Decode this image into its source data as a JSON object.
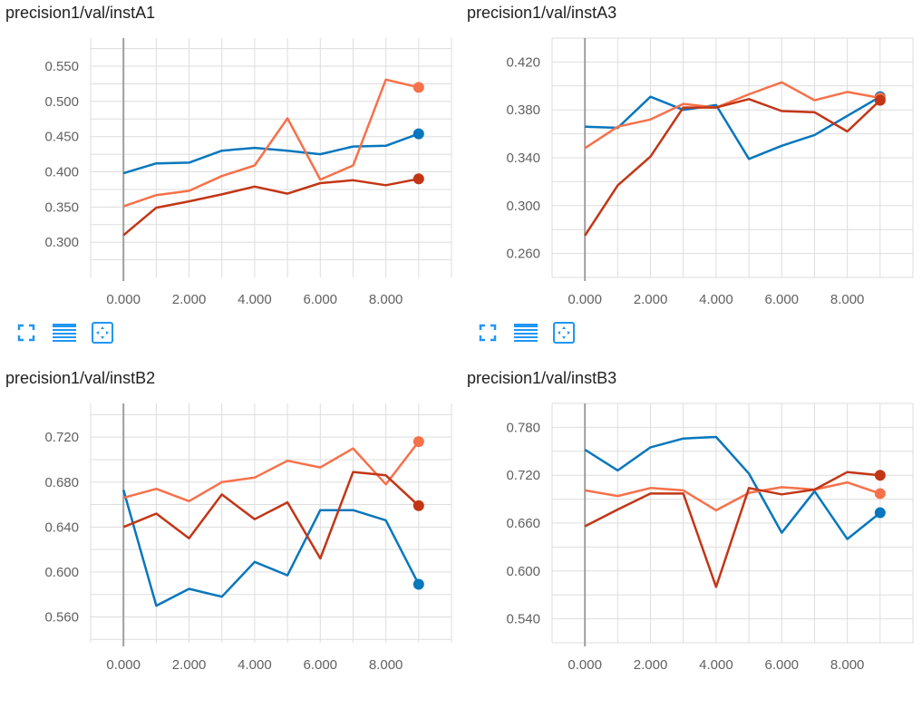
{
  "colors": {
    "blue": "#0877bd",
    "orange": "#f7714a",
    "red": "#c23616",
    "grid": "#dddddd",
    "axis": "#9e9e9e",
    "icon": "#2196f3"
  },
  "toolbar": {
    "icons": [
      "fullscreen-icon",
      "data-table-icon",
      "fit-domain-icon"
    ]
  },
  "chart_data": [
    {
      "type": "line",
      "title": "precision1/val/instA1",
      "x_ticks": [
        "0.000",
        "2.000",
        "4.000",
        "6.000",
        "8.000"
      ],
      "y_ticks": [
        "0.300",
        "0.350",
        "0.400",
        "0.450",
        "0.500",
        "0.550"
      ],
      "xlim": [
        -1,
        10
      ],
      "ylim": [
        0.25,
        0.59
      ],
      "series": [
        {
          "color": "blue",
          "x": [
            0,
            1,
            2,
            3,
            4,
            5,
            6,
            7,
            8,
            9
          ],
          "values": [
            0.398,
            0.412,
            0.413,
            0.43,
            0.434,
            0.43,
            0.425,
            0.436,
            0.437,
            0.454
          ]
        },
        {
          "color": "orange",
          "x": [
            0,
            1,
            2,
            3,
            4,
            5,
            6,
            7,
            8,
            9
          ],
          "values": [
            0.351,
            0.367,
            0.373,
            0.394,
            0.409,
            0.476,
            0.389,
            0.409,
            0.531,
            0.52
          ]
        },
        {
          "color": "red",
          "x": [
            0,
            1,
            2,
            3,
            4,
            5,
            6,
            7,
            8,
            9
          ],
          "values": [
            0.31,
            0.349,
            0.358,
            0.368,
            0.379,
            0.369,
            0.384,
            0.388,
            0.381,
            0.39
          ]
        }
      ]
    },
    {
      "type": "line",
      "title": "precision1/val/instA3",
      "x_ticks": [
        "0.000",
        "2.000",
        "4.000",
        "6.000",
        "8.000"
      ],
      "y_ticks": [
        "0.260",
        "0.300",
        "0.340",
        "0.380",
        "0.420"
      ],
      "xlim": [
        -1,
        10
      ],
      "ylim": [
        0.24,
        0.44
      ],
      "series": [
        {
          "color": "blue",
          "x": [
            0,
            1,
            2,
            3,
            4,
            5,
            6,
            7,
            8,
            9
          ],
          "values": [
            0.366,
            0.365,
            0.391,
            0.38,
            0.384,
            0.339,
            0.35,
            0.359,
            0.375,
            0.391
          ]
        },
        {
          "color": "orange",
          "x": [
            0,
            1,
            2,
            3,
            4,
            5,
            6,
            7,
            8,
            9
          ],
          "values": [
            0.348,
            0.366,
            0.372,
            0.385,
            0.382,
            0.393,
            0.403,
            0.388,
            0.395,
            0.39
          ]
        },
        {
          "color": "red",
          "x": [
            0,
            1,
            2,
            3,
            4,
            5,
            6,
            7,
            8,
            9
          ],
          "values": [
            0.275,
            0.317,
            0.341,
            0.382,
            0.382,
            0.389,
            0.379,
            0.378,
            0.362,
            0.388
          ]
        }
      ]
    },
    {
      "type": "line",
      "title": "precision1/val/instB2",
      "x_ticks": [
        "0.000",
        "2.000",
        "4.000",
        "6.000",
        "8.000"
      ],
      "y_ticks": [
        "0.560",
        "0.600",
        "0.640",
        "0.680",
        "0.720"
      ],
      "xlim": [
        -1,
        10
      ],
      "ylim": [
        0.537,
        0.75
      ],
      "series": [
        {
          "color": "blue",
          "x": [
            0,
            1,
            2,
            3,
            4,
            5,
            6,
            7,
            8,
            9
          ],
          "values": [
            0.673,
            0.57,
            0.585,
            0.578,
            0.609,
            0.597,
            0.655,
            0.655,
            0.646,
            0.589
          ]
        },
        {
          "color": "orange",
          "x": [
            0,
            1,
            2,
            3,
            4,
            5,
            6,
            7,
            8,
            9
          ],
          "values": [
            0.666,
            0.674,
            0.663,
            0.68,
            0.684,
            0.699,
            0.693,
            0.71,
            0.678,
            0.716
          ]
        },
        {
          "color": "red",
          "x": [
            0,
            1,
            2,
            3,
            4,
            5,
            6,
            7,
            8,
            9
          ],
          "values": [
            0.64,
            0.652,
            0.63,
            0.669,
            0.647,
            0.662,
            0.612,
            0.689,
            0.686,
            0.659
          ]
        }
      ]
    },
    {
      "type": "line",
      "title": "precision1/val/instB3",
      "x_ticks": [
        "0.000",
        "2.000",
        "4.000",
        "6.000",
        "8.000"
      ],
      "y_ticks": [
        "0.540",
        "0.600",
        "0.660",
        "0.720",
        "0.780"
      ],
      "xlim": [
        -1,
        10
      ],
      "ylim": [
        0.51,
        0.81
      ],
      "series": [
        {
          "color": "blue",
          "x": [
            0,
            1,
            2,
            3,
            4,
            5,
            6,
            7,
            8,
            9
          ],
          "values": [
            0.752,
            0.726,
            0.755,
            0.766,
            0.768,
            0.722,
            0.648,
            0.7,
            0.64,
            0.673
          ]
        },
        {
          "color": "orange",
          "x": [
            0,
            1,
            2,
            3,
            4,
            5,
            6,
            7,
            8,
            9
          ],
          "values": [
            0.701,
            0.694,
            0.704,
            0.701,
            0.676,
            0.698,
            0.705,
            0.702,
            0.711,
            0.697
          ]
        },
        {
          "color": "red",
          "x": [
            0,
            1,
            2,
            3,
            4,
            5,
            6,
            7,
            8,
            9
          ],
          "values": [
            0.656,
            0.677,
            0.697,
            0.697,
            0.58,
            0.704,
            0.696,
            0.702,
            0.724,
            0.72
          ]
        }
      ]
    }
  ]
}
